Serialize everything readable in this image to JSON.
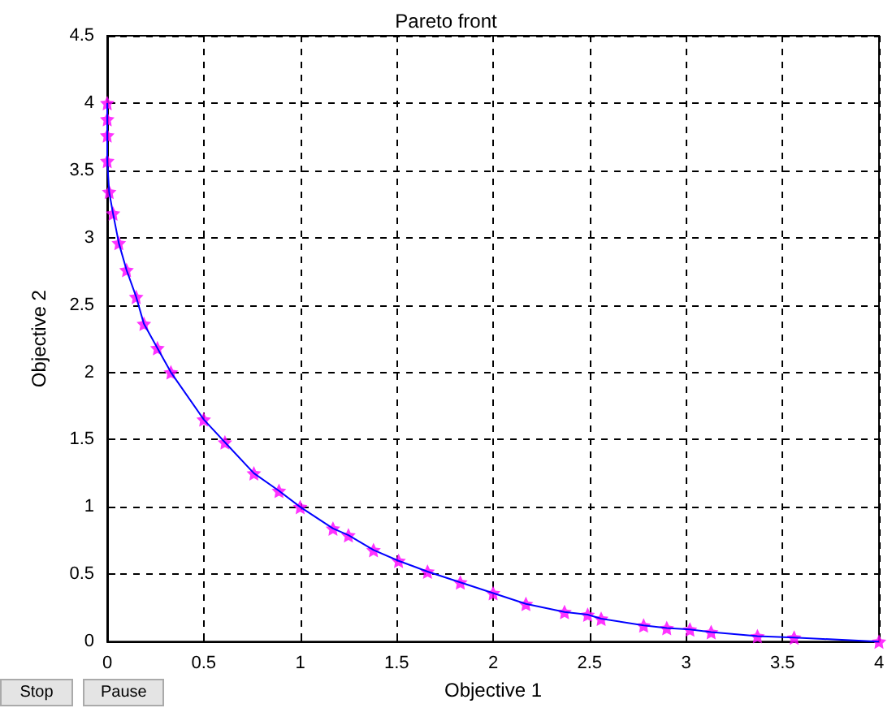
{
  "chart_data": {
    "type": "line",
    "title": "Pareto front",
    "xlabel": "Objective 1",
    "ylabel": "Objective 2",
    "annotations": [
      "Stop",
      "Pause"
    ],
    "xlim": [
      0,
      4
    ],
    "xticks": [
      0,
      0.5,
      1,
      1.5,
      2,
      2.5,
      3,
      3.5,
      4
    ],
    "ylim": [
      0,
      4.5
    ],
    "yticks": [
      0,
      0.5,
      1,
      1.5,
      2,
      2.5,
      3,
      3.5,
      4,
      4.5
    ],
    "grid": true,
    "series": [
      {
        "color": "#0000ff",
        "marker": "none",
        "x": [
          0,
          0,
          0,
          0,
          0.01,
          0.03,
          0.06,
          0.1,
          0.15,
          0.19,
          0.26,
          0.33,
          0.5,
          0.61,
          0.76,
          0.89,
          1,
          1.17,
          1.25,
          1.38,
          1.51,
          1.66,
          1.83,
          2,
          2.17,
          2.37,
          2.49,
          2.56,
          2.78,
          2.9,
          3.02,
          3.13,
          3.37,
          3.56,
          4
        ],
        "values": [
          4,
          3.88,
          3.76,
          3.57,
          3.34,
          3.18,
          2.96,
          2.76,
          2.56,
          2.36,
          2.18,
          2,
          1.65,
          1.48,
          1.25,
          1.12,
          1,
          0.84,
          0.79,
          0.68,
          0.6,
          0.52,
          0.44,
          0.36,
          0.28,
          0.22,
          0.2,
          0.17,
          0.12,
          0.1,
          0.09,
          0.07,
          0.04,
          0.03,
          0
        ]
      },
      {
        "type": "scatter",
        "color": "#ff00ff",
        "marker": "star",
        "x": [
          0,
          0,
          0,
          0,
          0.01,
          0.03,
          0.06,
          0.1,
          0.15,
          0.19,
          0.26,
          0.33,
          0.5,
          0.61,
          0.76,
          0.89,
          1,
          1.17,
          1.25,
          1.38,
          1.51,
          1.66,
          1.83,
          2,
          2.17,
          2.37,
          2.49,
          2.56,
          2.78,
          2.9,
          3.02,
          3.13,
          3.37,
          3.56,
          4
        ],
        "values": [
          4,
          3.88,
          3.76,
          3.57,
          3.34,
          3.18,
          2.96,
          2.76,
          2.56,
          2.36,
          2.18,
          2,
          1.65,
          1.48,
          1.25,
          1.12,
          1,
          0.84,
          0.79,
          0.68,
          0.6,
          0.52,
          0.44,
          0.36,
          0.28,
          0.22,
          0.2,
          0.17,
          0.12,
          0.1,
          0.09,
          0.07,
          0.04,
          0.03,
          0
        ]
      }
    ]
  }
}
